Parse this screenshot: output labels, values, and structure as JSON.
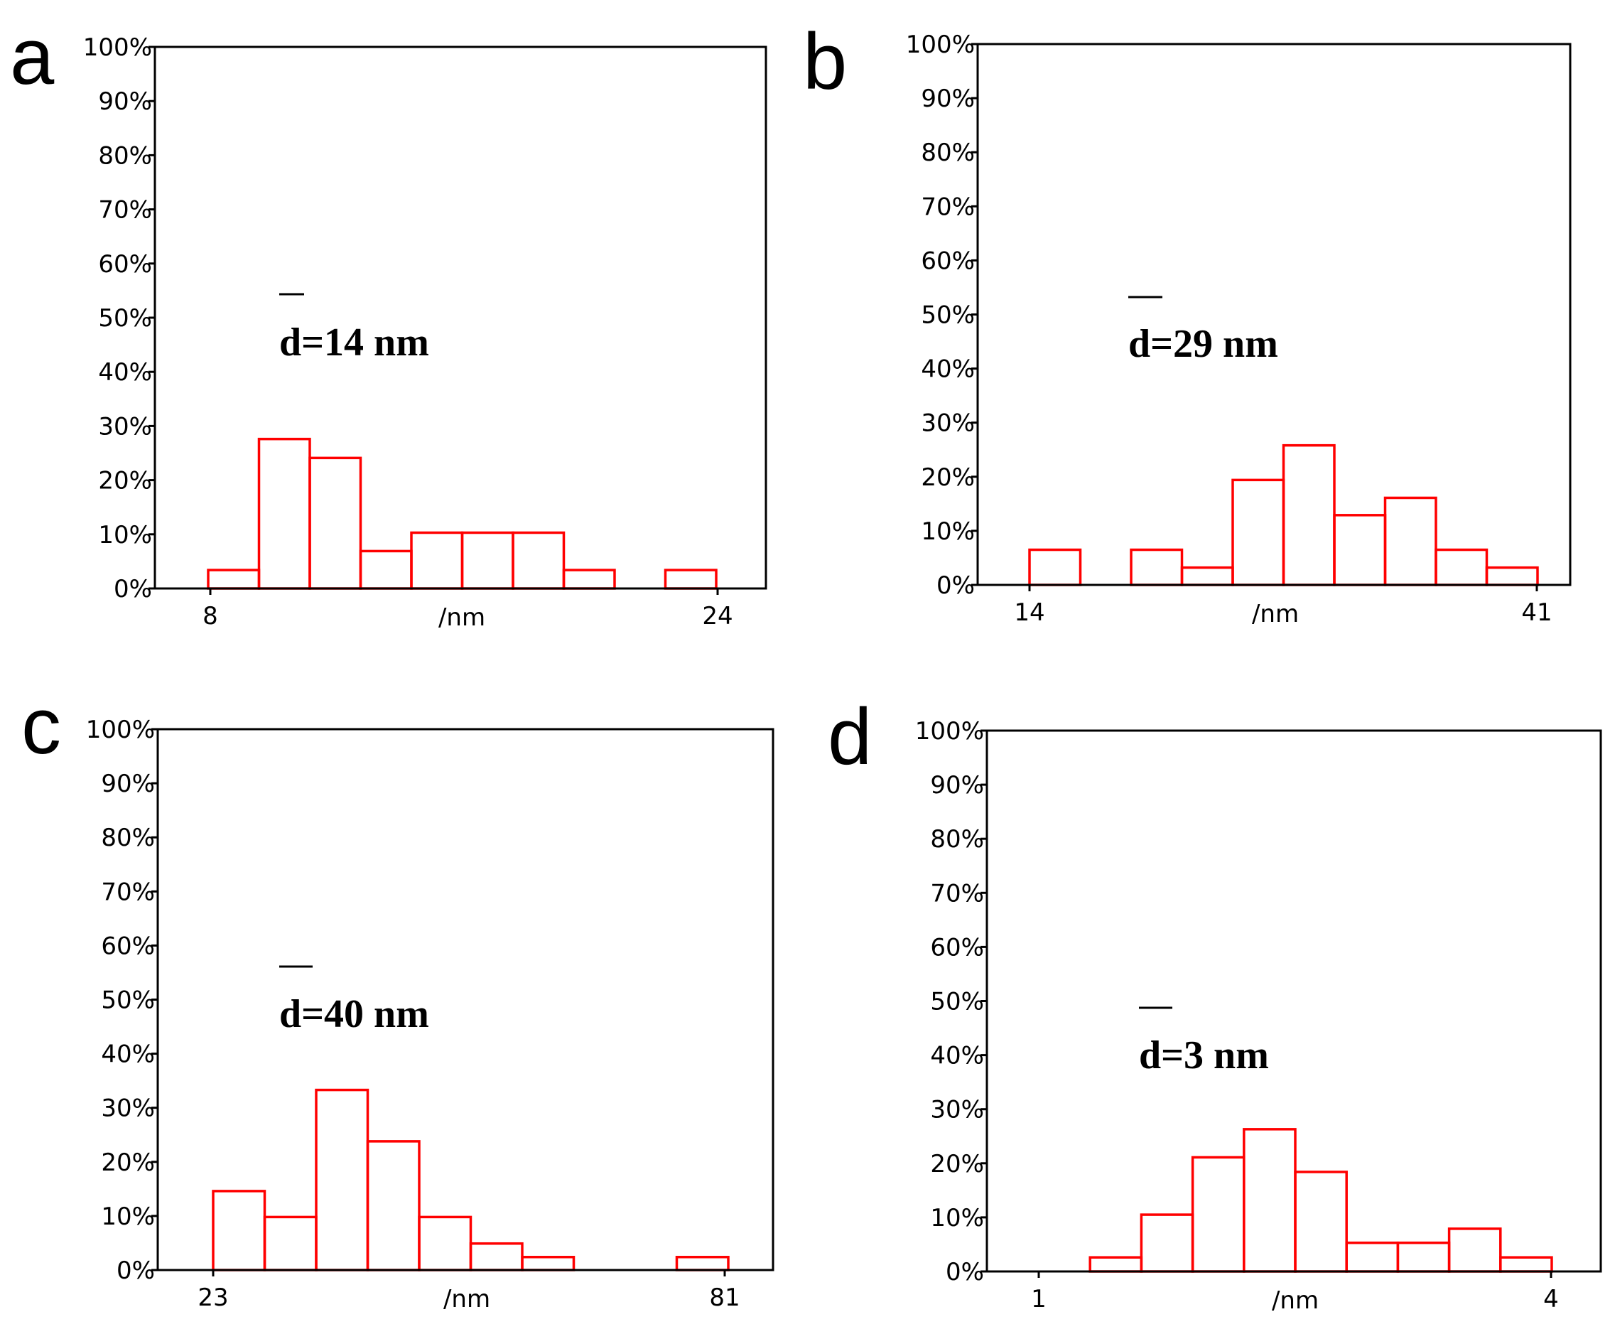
{
  "chart_data": [
    {
      "type": "bar",
      "panel": "a",
      "title": "",
      "xlabel": "/nm",
      "ylabel": "",
      "ylim": [
        0,
        100
      ],
      "y_ticks": [
        "0%",
        "10%",
        "20%",
        "30%",
        "40%",
        "50%",
        "60%",
        "70%",
        "80%",
        "90%",
        "100%"
      ],
      "x_ticks": [
        "8",
        "24"
      ],
      "x_range": [
        8,
        24
      ],
      "annotation": "d=14 nm",
      "bin_width": 1.6,
      "values": [
        3.4,
        27.6,
        24.1,
        6.9,
        10.3,
        10.3,
        10.3,
        3.4,
        0,
        3.4
      ]
    },
    {
      "type": "bar",
      "panel": "b",
      "title": "",
      "xlabel": "/nm",
      "ylabel": "",
      "ylim": [
        0,
        100
      ],
      "y_ticks": [
        "0%",
        "10%",
        "20%",
        "30%",
        "40%",
        "50%",
        "60%",
        "70%",
        "80%",
        "90%",
        "100%"
      ],
      "x_ticks": [
        "14",
        "41"
      ],
      "x_range": [
        14,
        41
      ],
      "annotation": "d=29 nm",
      "bin_width": 2.7,
      "values": [
        6.5,
        0,
        6.5,
        3.2,
        19.4,
        25.8,
        12.9,
        16.1,
        6.5,
        3.2
      ]
    },
    {
      "type": "bar",
      "panel": "c",
      "title": "",
      "xlabel": "/nm",
      "ylabel": "",
      "ylim": [
        0,
        100
      ],
      "y_ticks": [
        "0%",
        "10%",
        "20%",
        "30%",
        "40%",
        "50%",
        "60%",
        "70%",
        "80%",
        "90%",
        "100%"
      ],
      "x_ticks": [
        "23",
        "81"
      ],
      "x_range": [
        23,
        81
      ],
      "annotation": "d=40 nm",
      "bin_width": 5.8,
      "values": [
        14.6,
        9.8,
        33.3,
        23.8,
        9.8,
        4.9,
        2.4,
        0,
        0,
        2.4
      ]
    },
    {
      "type": "bar",
      "panel": "d",
      "title": "",
      "xlabel": "/nm",
      "ylabel": "",
      "ylim": [
        0,
        100
      ],
      "y_ticks": [
        "0%",
        "10%",
        "20%",
        "30%",
        "40%",
        "50%",
        "60%",
        "70%",
        "80%",
        "90%",
        "100%"
      ],
      "x_ticks": [
        "1",
        "4"
      ],
      "x_range": [
        1,
        4
      ],
      "annotation": "d=3 nm",
      "bin_width": 0.3,
      "values": [
        0,
        2.6,
        10.5,
        21.1,
        26.3,
        18.4,
        5.3,
        5.3,
        7.9,
        2.6
      ]
    }
  ]
}
